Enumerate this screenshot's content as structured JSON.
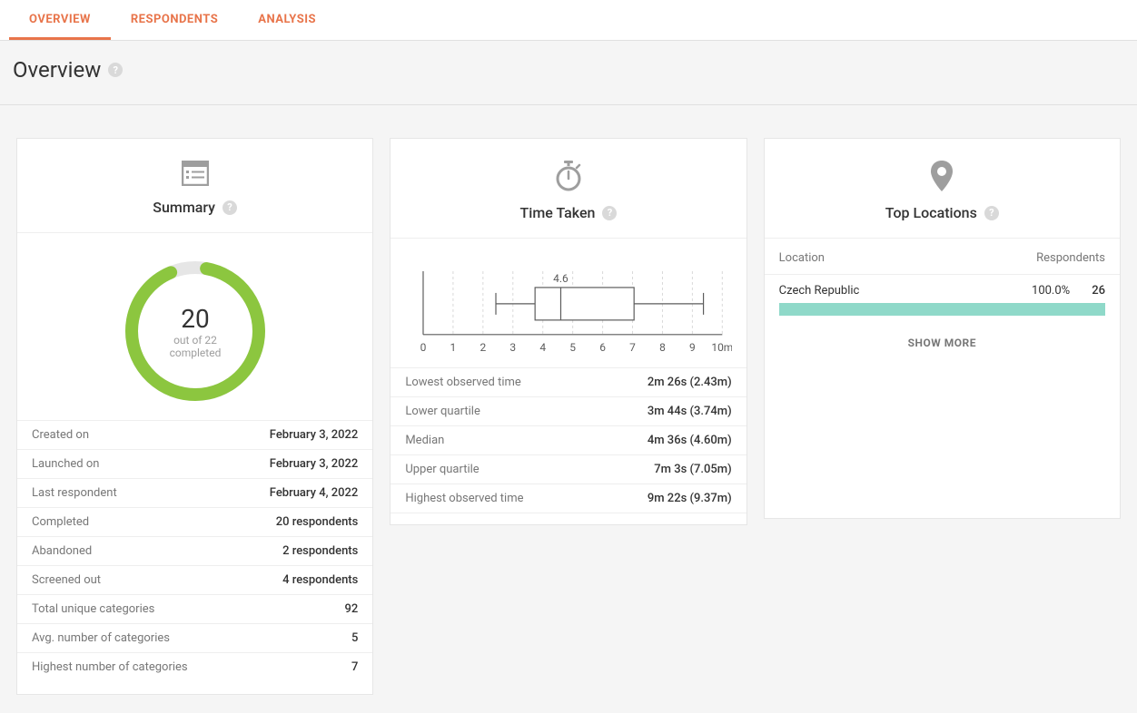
{
  "tabs": [
    {
      "label": "OVERVIEW",
      "active": true
    },
    {
      "label": "RESPONDENTS",
      "active": false
    },
    {
      "label": "ANALYSIS",
      "active": false
    }
  ],
  "page_title": "Overview",
  "summary": {
    "title": "Summary",
    "donut": {
      "completed": 20,
      "total": 22,
      "fraction": 0.9091,
      "ring_color": "#8cc63f",
      "ring_bg": "#e6e6e6",
      "sub_line1": "out of 22",
      "sub_line2": "completed",
      "number": "20"
    },
    "rows": [
      {
        "label": "Created on",
        "value": "February 3, 2022"
      },
      {
        "label": "Launched on",
        "value": "February 3, 2022"
      },
      {
        "label": "Last respondent",
        "value": "February 4, 2022"
      },
      {
        "label": "Completed",
        "value": "20 respondents"
      },
      {
        "label": "Abandoned",
        "value": "2 respondents"
      },
      {
        "label": "Screened out",
        "value": "4 respondents"
      },
      {
        "label": "Total unique categories",
        "value": "92"
      },
      {
        "label": "Avg. number of categories",
        "value": "5"
      },
      {
        "label": "Highest number of categories",
        "value": "7"
      }
    ]
  },
  "time_taken": {
    "title": "Time Taken",
    "boxplot": {
      "type": "boxplot",
      "xlim": [
        0,
        10
      ],
      "xtick_step": 1,
      "xtick_suffix_last": "m",
      "axis_color": "#5c5c5c",
      "grid_color": "#d9d9d9",
      "grid_dash": "3,3",
      "box_stroke": "#5c5c5c",
      "box_fill": "none",
      "whisker_low": 2.43,
      "q1": 3.74,
      "median": 4.6,
      "q3": 7.05,
      "whisker_high": 9.37,
      "median_label": "4.6",
      "label_fontsize": 12,
      "tick_fontsize": 12
    },
    "rows": [
      {
        "label": "Lowest observed time",
        "value": "2m 26s (2.43m)"
      },
      {
        "label": "Lower quartile",
        "value": "3m 44s (3.74m)"
      },
      {
        "label": "Median",
        "value": "4m 36s (4.60m)"
      },
      {
        "label": "Upper quartile",
        "value": "7m 3s (7.05m)"
      },
      {
        "label": "Highest observed time",
        "value": "9m 22s (9.37m)"
      }
    ]
  },
  "locations": {
    "title": "Top Locations",
    "col_location": "Location",
    "col_respondents": "Respondents",
    "rows": [
      {
        "name": "Czech Republic",
        "percent_label": "100.0%",
        "percent": 100,
        "count": "26"
      }
    ],
    "bar_color": "#8fd9c9",
    "show_more": "SHOW MORE"
  }
}
